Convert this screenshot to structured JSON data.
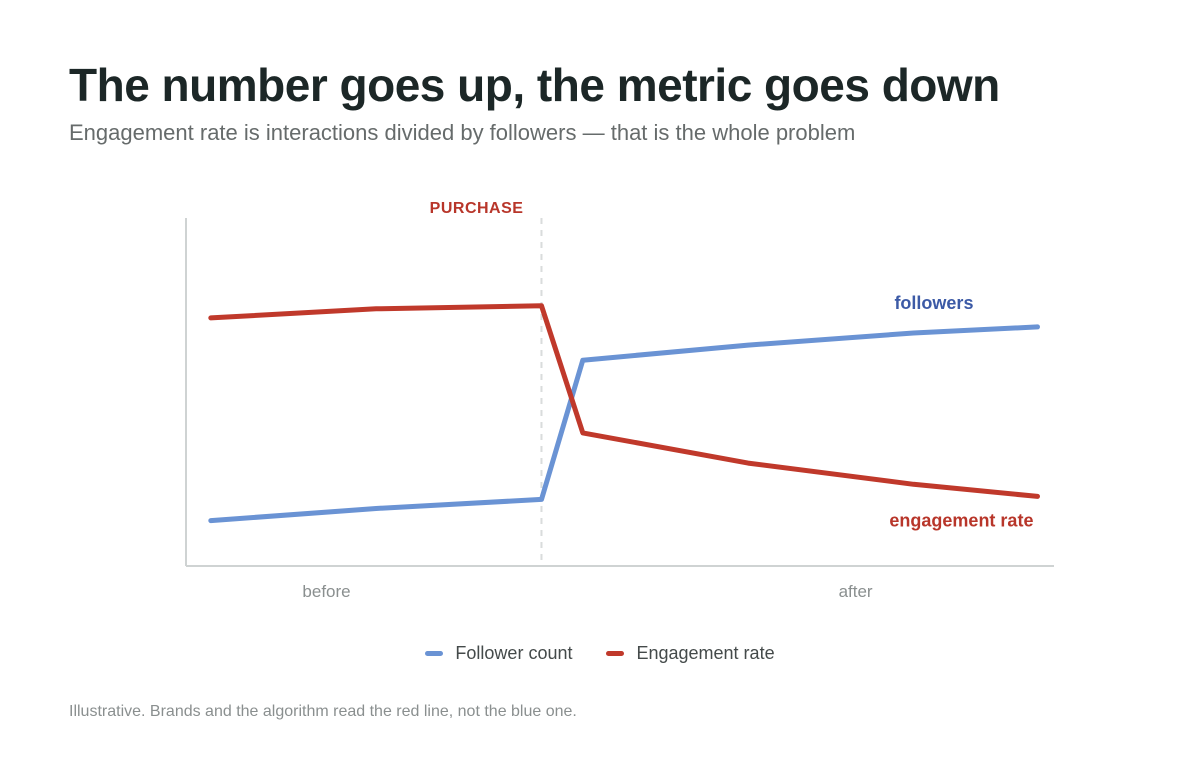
{
  "header": {
    "title": "The number goes up, the metric goes down",
    "subtitle": "Engagement rate is interactions divided by followers — that is the whole problem"
  },
  "chart_data": {
    "type": "line",
    "x": [
      0,
      1,
      2,
      2.25,
      3.25,
      4.25,
      5
    ],
    "series": [
      {
        "name": "Follower count",
        "label": "followers",
        "color": "#6a93d4",
        "label_color": "#3c5aa6",
        "values": [
          10,
          14,
          17,
          63,
          68,
          72,
          74
        ]
      },
      {
        "name": "Engagement rate",
        "label": "engagement rate",
        "color": "#c0392b",
        "label_color": "#b8362a",
        "values": [
          77,
          80,
          81,
          39,
          29,
          22,
          18
        ]
      }
    ],
    "event": {
      "x": 2,
      "label": "PURCHASE",
      "color": "#b8362a"
    },
    "x_labels": [
      {
        "x": 0.7,
        "text": "before"
      },
      {
        "x": 3.9,
        "text": "after"
      }
    ],
    "xlim": [
      -0.15,
      5.1
    ],
    "ylim": [
      -5,
      110
    ],
    "grid": false,
    "legend_position": "bottom-center"
  },
  "legend": {
    "items": [
      {
        "label": "Follower count",
        "color": "#6a93d4"
      },
      {
        "label": "Engagement rate",
        "color": "#c0392b"
      }
    ]
  },
  "footer": {
    "note": "Illustrative. Brands and the algorithm read the red line, not the blue one."
  }
}
